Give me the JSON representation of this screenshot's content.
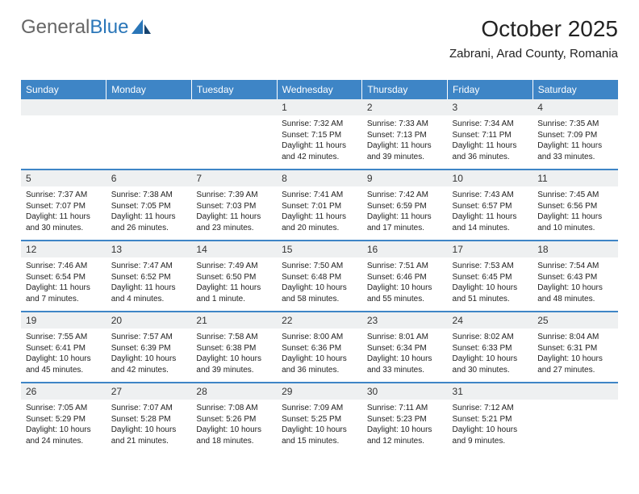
{
  "brand": {
    "part1": "General",
    "part2": "Blue"
  },
  "title": "October 2025",
  "location": "Zabrani, Arad County, Romania",
  "headers": [
    "Sunday",
    "Monday",
    "Tuesday",
    "Wednesday",
    "Thursday",
    "Friday",
    "Saturday"
  ],
  "colors": {
    "accent": "#3e85c6",
    "shade": "#eef0f1"
  },
  "weeks": [
    [
      {
        "n": "",
        "sr": "",
        "ss": "",
        "dl": ""
      },
      {
        "n": "",
        "sr": "",
        "ss": "",
        "dl": ""
      },
      {
        "n": "",
        "sr": "",
        "ss": "",
        "dl": ""
      },
      {
        "n": "1",
        "sr": "7:32 AM",
        "ss": "7:15 PM",
        "dl": "11 hours and 42 minutes."
      },
      {
        "n": "2",
        "sr": "7:33 AM",
        "ss": "7:13 PM",
        "dl": "11 hours and 39 minutes."
      },
      {
        "n": "3",
        "sr": "7:34 AM",
        "ss": "7:11 PM",
        "dl": "11 hours and 36 minutes."
      },
      {
        "n": "4",
        "sr": "7:35 AM",
        "ss": "7:09 PM",
        "dl": "11 hours and 33 minutes."
      }
    ],
    [
      {
        "n": "5",
        "sr": "7:37 AM",
        "ss": "7:07 PM",
        "dl": "11 hours and 30 minutes."
      },
      {
        "n": "6",
        "sr": "7:38 AM",
        "ss": "7:05 PM",
        "dl": "11 hours and 26 minutes."
      },
      {
        "n": "7",
        "sr": "7:39 AM",
        "ss": "7:03 PM",
        "dl": "11 hours and 23 minutes."
      },
      {
        "n": "8",
        "sr": "7:41 AM",
        "ss": "7:01 PM",
        "dl": "11 hours and 20 minutes."
      },
      {
        "n": "9",
        "sr": "7:42 AM",
        "ss": "6:59 PM",
        "dl": "11 hours and 17 minutes."
      },
      {
        "n": "10",
        "sr": "7:43 AM",
        "ss": "6:57 PM",
        "dl": "11 hours and 14 minutes."
      },
      {
        "n": "11",
        "sr": "7:45 AM",
        "ss": "6:56 PM",
        "dl": "11 hours and 10 minutes."
      }
    ],
    [
      {
        "n": "12",
        "sr": "7:46 AM",
        "ss": "6:54 PM",
        "dl": "11 hours and 7 minutes."
      },
      {
        "n": "13",
        "sr": "7:47 AM",
        "ss": "6:52 PM",
        "dl": "11 hours and 4 minutes."
      },
      {
        "n": "14",
        "sr": "7:49 AM",
        "ss": "6:50 PM",
        "dl": "11 hours and 1 minute."
      },
      {
        "n": "15",
        "sr": "7:50 AM",
        "ss": "6:48 PM",
        "dl": "10 hours and 58 minutes."
      },
      {
        "n": "16",
        "sr": "7:51 AM",
        "ss": "6:46 PM",
        "dl": "10 hours and 55 minutes."
      },
      {
        "n": "17",
        "sr": "7:53 AM",
        "ss": "6:45 PM",
        "dl": "10 hours and 51 minutes."
      },
      {
        "n": "18",
        "sr": "7:54 AM",
        "ss": "6:43 PM",
        "dl": "10 hours and 48 minutes."
      }
    ],
    [
      {
        "n": "19",
        "sr": "7:55 AM",
        "ss": "6:41 PM",
        "dl": "10 hours and 45 minutes."
      },
      {
        "n": "20",
        "sr": "7:57 AM",
        "ss": "6:39 PM",
        "dl": "10 hours and 42 minutes."
      },
      {
        "n": "21",
        "sr": "7:58 AM",
        "ss": "6:38 PM",
        "dl": "10 hours and 39 minutes."
      },
      {
        "n": "22",
        "sr": "8:00 AM",
        "ss": "6:36 PM",
        "dl": "10 hours and 36 minutes."
      },
      {
        "n": "23",
        "sr": "8:01 AM",
        "ss": "6:34 PM",
        "dl": "10 hours and 33 minutes."
      },
      {
        "n": "24",
        "sr": "8:02 AM",
        "ss": "6:33 PM",
        "dl": "10 hours and 30 minutes."
      },
      {
        "n": "25",
        "sr": "8:04 AM",
        "ss": "6:31 PM",
        "dl": "10 hours and 27 minutes."
      }
    ],
    [
      {
        "n": "26",
        "sr": "7:05 AM",
        "ss": "5:29 PM",
        "dl": "10 hours and 24 minutes."
      },
      {
        "n": "27",
        "sr": "7:07 AM",
        "ss": "5:28 PM",
        "dl": "10 hours and 21 minutes."
      },
      {
        "n": "28",
        "sr": "7:08 AM",
        "ss": "5:26 PM",
        "dl": "10 hours and 18 minutes."
      },
      {
        "n": "29",
        "sr": "7:09 AM",
        "ss": "5:25 PM",
        "dl": "10 hours and 15 minutes."
      },
      {
        "n": "30",
        "sr": "7:11 AM",
        "ss": "5:23 PM",
        "dl": "10 hours and 12 minutes."
      },
      {
        "n": "31",
        "sr": "7:12 AM",
        "ss": "5:21 PM",
        "dl": "10 hours and 9 minutes."
      },
      {
        "n": "",
        "sr": "",
        "ss": "",
        "dl": ""
      }
    ]
  ]
}
